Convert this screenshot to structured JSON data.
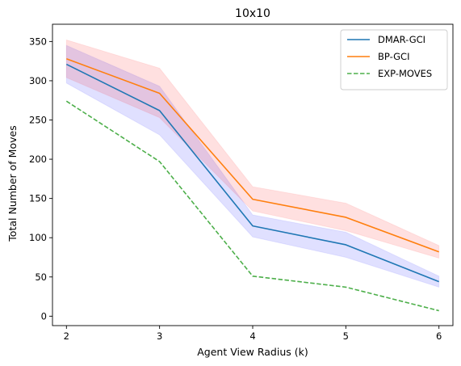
{
  "chart_data": {
    "type": "line",
    "title": "10x10",
    "xlabel": "Agent View Radius (k)",
    "ylabel": "Total Number of Moves",
    "x": [
      2,
      3,
      4,
      5,
      6
    ],
    "xlim": [
      1.85,
      6.15
    ],
    "ylim": [
      -12,
      372
    ],
    "xticks": [
      2,
      3,
      4,
      5,
      6
    ],
    "yticks": [
      0,
      50,
      100,
      150,
      200,
      250,
      300,
      350
    ],
    "grid": false,
    "legend_position": "top-right",
    "series": [
      {
        "name": "DMAR-GCI",
        "color": "#1f77b4",
        "style": "solid",
        "values": [
          321,
          262,
          115,
          91,
          44
        ],
        "band_lower": [
          297,
          231,
          101,
          75,
          37
        ],
        "band_upper": [
          345,
          293,
          129,
          107,
          51
        ],
        "band_color": "#0000ff",
        "band_opacity": 0.12
      },
      {
        "name": "BP-GCI",
        "color": "#ff7f0e",
        "style": "solid",
        "values": [
          328,
          284,
          149,
          126,
          82
        ],
        "band_lower": [
          304,
          253,
          134,
          109,
          74
        ],
        "band_upper": [
          352,
          316,
          165,
          144,
          90
        ],
        "band_color": "#ff0000",
        "band_opacity": 0.12
      },
      {
        "name": "EXP-MOVES",
        "color": "#4daf4a",
        "style": "dashed",
        "values": [
          274,
          197,
          51,
          37,
          7
        ]
      }
    ]
  }
}
